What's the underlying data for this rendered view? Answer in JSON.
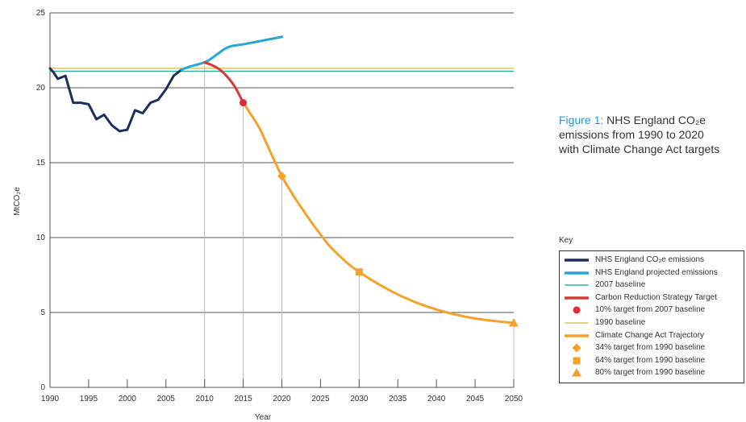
{
  "chart_data": {
    "type": "line",
    "title": "NHS England CO₂e emissions from 1990 to 2020 with Climate Change Act targets",
    "caption_prefix": "Figure 1:",
    "caption_lines": [
      "NHS England CO₂e",
      "emissions from 1990 to 2020",
      "with Climate Change Act targets"
    ],
    "xlabel": "Year",
    "ylabel": "MtCO₂e",
    "xlim": [
      1990,
      2050
    ],
    "ylim": [
      0,
      25
    ],
    "x_ticks": [
      1990,
      1995,
      2000,
      2005,
      2010,
      2015,
      2020,
      2025,
      2030,
      2035,
      2040,
      2045,
      2050
    ],
    "y_ticks": [
      0,
      5,
      10,
      15,
      20,
      25
    ],
    "grid": "horizontal",
    "legend_title": "Key",
    "legend_position": "right",
    "series": [
      {
        "name": "NHS England CO₂e emissions",
        "kind": "line",
        "color": "#1b2f5c",
        "x": [
          1990,
          1990.5,
          1991,
          1992,
          1993,
          1994,
          1995,
          1996,
          1997,
          1998,
          1999,
          2000,
          2001,
          2002,
          2003,
          2004,
          2005,
          2006,
          2007
        ],
        "y": [
          21.3,
          21.0,
          20.6,
          20.8,
          19.0,
          19.0,
          18.9,
          17.9,
          18.2,
          17.5,
          17.1,
          17.2,
          18.5,
          18.3,
          19.0,
          19.2,
          19.9,
          20.8,
          21.2
        ]
      },
      {
        "name": "NHS England projected emissions",
        "kind": "line",
        "color": "#26a8d5",
        "x": [
          2007,
          2008,
          2010,
          2011,
          2013,
          2015,
          2018,
          2020
        ],
        "y": [
          21.2,
          21.4,
          21.7,
          22.0,
          22.7,
          22.9,
          23.2,
          23.4
        ]
      },
      {
        "name": "2007 baseline",
        "kind": "hline",
        "color": "#2bb3a0",
        "y": 21.1
      },
      {
        "name": "Carbon Reduction Strategy Target",
        "kind": "line",
        "color": "#d73a31",
        "x": [
          2010,
          2011,
          2012,
          2013,
          2014,
          2015
        ],
        "y": [
          21.7,
          21.5,
          21.2,
          20.7,
          20.0,
          19.0
        ]
      },
      {
        "name": "10% target from 2007 baseline",
        "kind": "marker",
        "shape": "circle",
        "color": "#e52a3a",
        "x": [
          2015
        ],
        "y": [
          19.0
        ]
      },
      {
        "name": "1990 baseline",
        "kind": "hline",
        "color": "#d9c45c",
        "y": 21.3
      },
      {
        "name": "Climate Change Act Trajectory",
        "kind": "line",
        "color": "#f5a12b",
        "x": [
          2015,
          2017,
          2018,
          2020,
          2022,
          2025,
          2027,
          2030,
          2035,
          2040,
          2045,
          2050
        ],
        "y": [
          19.0,
          17.4,
          16.3,
          14.1,
          12.4,
          10.2,
          9.0,
          7.7,
          6.2,
          5.2,
          4.6,
          4.3
        ]
      },
      {
        "name": "34% target from 1990 baseline",
        "kind": "marker",
        "shape": "diamond",
        "color": "#f5a12b",
        "x": [
          2020
        ],
        "y": [
          14.1
        ]
      },
      {
        "name": "64% target from 1990 baseline",
        "kind": "marker",
        "shape": "square",
        "color": "#f5a12b",
        "x": [
          2030
        ],
        "y": [
          7.7
        ]
      },
      {
        "name": "80% target from 1990 baseline",
        "kind": "marker",
        "shape": "triangle",
        "color": "#f5a12b",
        "x": [
          2050
        ],
        "y": [
          4.3
        ]
      }
    ],
    "drop_lines_x": [
      2010,
      2015,
      2020,
      2030,
      2050
    ]
  }
}
